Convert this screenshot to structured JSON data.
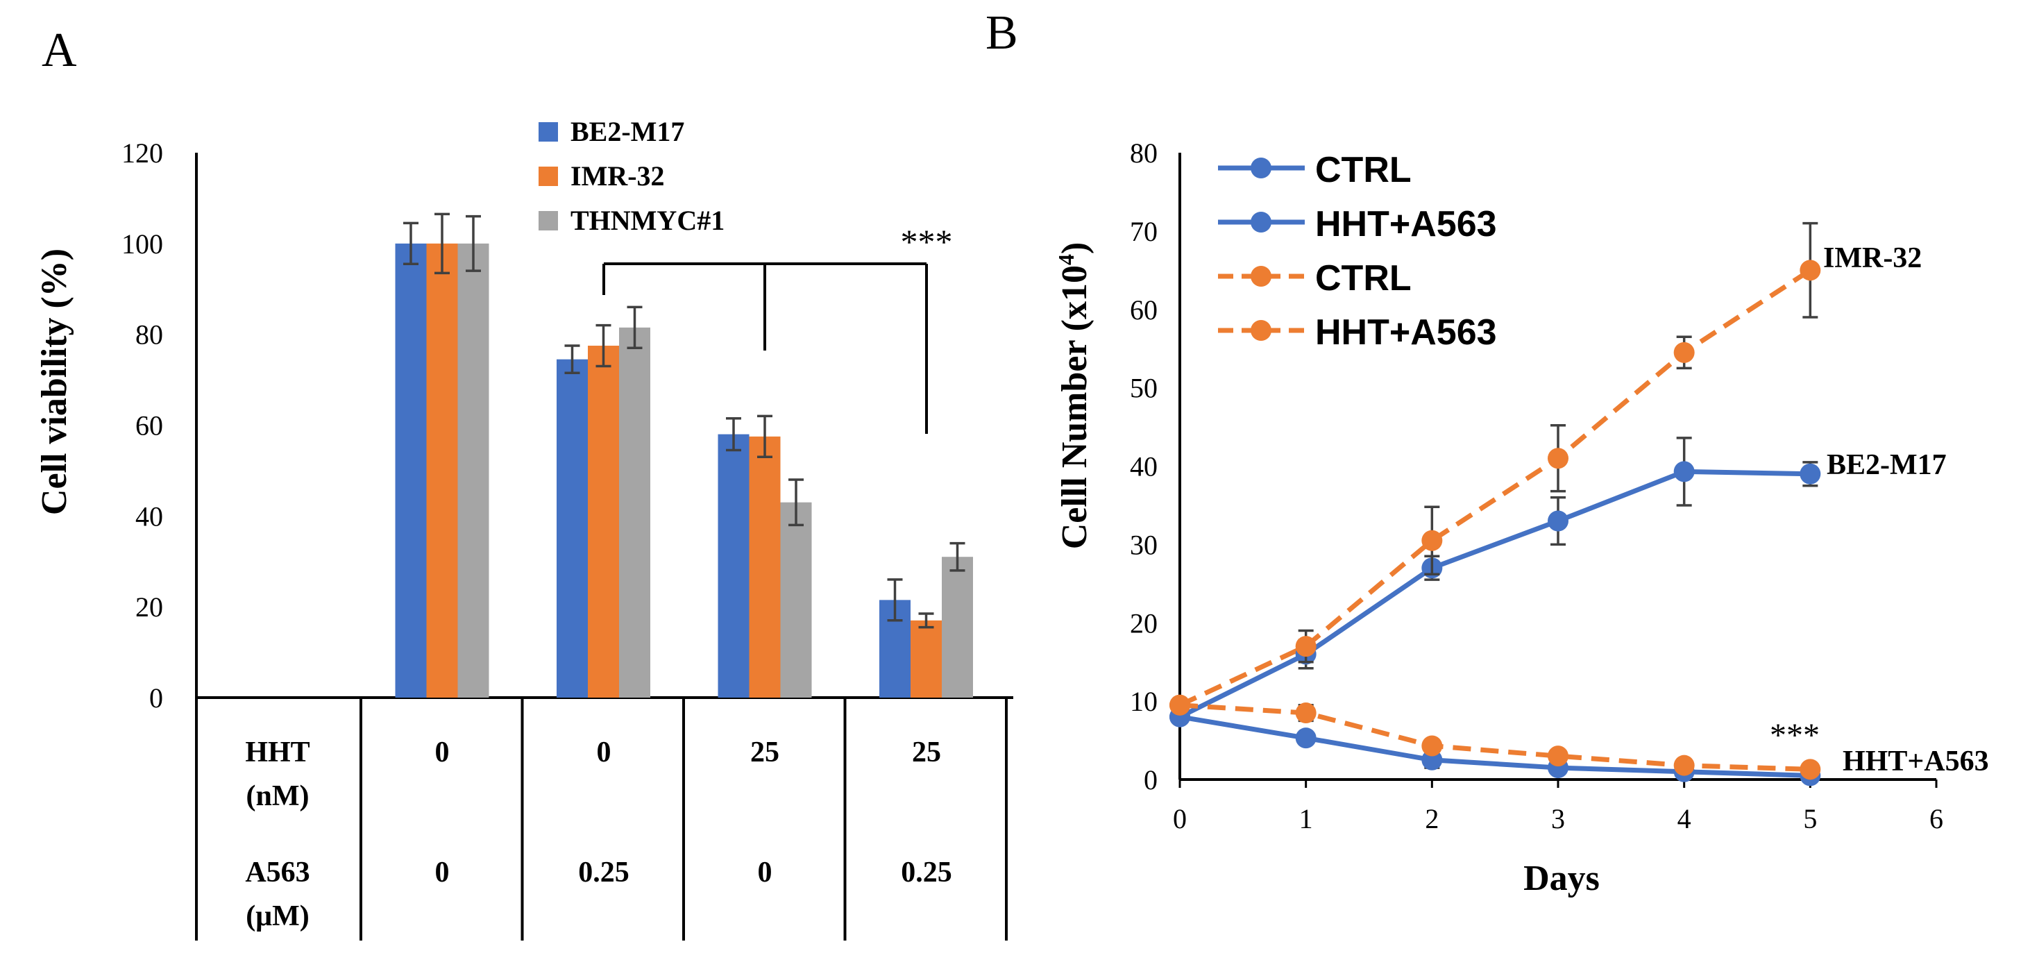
{
  "panel_labels": {
    "a": "A",
    "b": "B"
  },
  "colors": {
    "blue": "#4472C4",
    "orange": "#ED7D31",
    "gray": "#A5A5A5",
    "axis": "#000000",
    "errorbar": "#404040"
  },
  "chart_data": [
    {
      "panel": "A",
      "type": "bar",
      "title": "",
      "ylabel": "Cell viability (%)",
      "xlabel": "",
      "ylim": [
        0,
        120
      ],
      "yticks": [
        0,
        20,
        40,
        60,
        80,
        100,
        120
      ],
      "grid": false,
      "legend_position": "top-center",
      "categories": [
        "0 nM HHT / 0 µM A563",
        "0 nM HHT / 0.25 µM A563",
        "25 nM HHT / 0 µM A563",
        "25 nM HHT / 0.25 µM A563"
      ],
      "series": [
        {
          "name": "BE2-M17",
          "color": "#4472C4",
          "values": [
            100,
            74.5,
            58,
            21.5
          ],
          "errors": [
            4.5,
            3,
            3.5,
            4.5
          ]
        },
        {
          "name": "IMR-32",
          "color": "#ED7D31",
          "values": [
            100,
            77.5,
            57.5,
            17
          ],
          "errors": [
            6.5,
            4.5,
            4.5,
            1.5
          ]
        },
        {
          "name": "THNMYC#1",
          "color": "#A5A5A5",
          "values": [
            100,
            81.5,
            43,
            31
          ],
          "errors": [
            6,
            4.5,
            5,
            3
          ]
        }
      ],
      "significance": "***",
      "table": {
        "row_labels": [
          {
            "line1": "HHT",
            "line2": "(nM)"
          },
          {
            "line1": "A563",
            "line2": "(μM)"
          }
        ],
        "hht": [
          "0",
          "0",
          "25",
          "25"
        ],
        "a563": [
          "0",
          "0.25",
          "0",
          "0.25"
        ]
      }
    },
    {
      "panel": "B",
      "type": "line",
      "title": "",
      "xlabel": "Days",
      "ylabel_main": "Celll Number (x10",
      "ylabel_sup": "4",
      "ylabel_end": ")",
      "xlim": [
        0,
        6
      ],
      "ylim": [
        0,
        80
      ],
      "xticks": [
        0,
        1,
        2,
        3,
        4,
        5,
        6
      ],
      "yticks": [
        0,
        10,
        20,
        30,
        40,
        50,
        60,
        70,
        80
      ],
      "grid": false,
      "legend_position": "top-left",
      "series": [
        {
          "name": "CTRL",
          "line": "BE2-M17",
          "style": "solid",
          "color": "#4472C4",
          "x": [
            0,
            1,
            2,
            3,
            4,
            5
          ],
          "y": [
            8,
            16,
            27,
            33,
            39.3,
            39
          ],
          "errors": [
            0,
            1.8,
            1.5,
            3,
            4.3,
            1.5
          ]
        },
        {
          "name": "HHT+A563",
          "line": "BE2-M17",
          "style": "solid",
          "color": "#4472C4",
          "x": [
            0,
            1,
            2,
            3,
            4,
            5
          ],
          "y": [
            8,
            5.3,
            2.5,
            1.5,
            1,
            0.5
          ],
          "errors": [
            0,
            0,
            1,
            0,
            0,
            0
          ]
        },
        {
          "name": "CTRL",
          "line": "IMR-32",
          "style": "dashed",
          "color": "#ED7D31",
          "x": [
            0,
            1,
            2,
            3,
            4,
            5
          ],
          "y": [
            9.5,
            17,
            30.5,
            41,
            54.5,
            65
          ],
          "errors": [
            0,
            2,
            4.3,
            4.2,
            2,
            6
          ]
        },
        {
          "name": "HHT+A563",
          "line": "IMR-32",
          "style": "dashed",
          "color": "#ED7D31",
          "x": [
            0,
            1,
            2,
            3,
            4,
            5
          ],
          "y": [
            9.5,
            8.5,
            4.3,
            3,
            1.8,
            1.3
          ],
          "errors": [
            0,
            1,
            0,
            0,
            0,
            0
          ]
        }
      ],
      "annotations": {
        "imr32": "IMR-32",
        "be2m17": "BE2-M17",
        "treatment": "HHT+A563",
        "significance": "***"
      }
    }
  ]
}
